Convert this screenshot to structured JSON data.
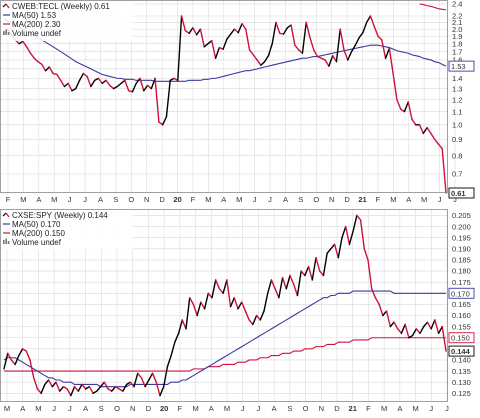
{
  "colors": {
    "price_up": "#000000",
    "price_down": "#d0103a",
    "ma50": "#3a3aa0",
    "ma200": "#d0103a",
    "grid": "#d8d8d8",
    "badge_bg": "#ffffff"
  },
  "chart_data": [
    {
      "type": "line",
      "legend": [
        {
          "text": "CWEB:TECL (Weekly) 0.61",
          "swatch": "price"
        },
        {
          "text": "MA(50) 1.53",
          "swatch": "ma50"
        },
        {
          "text": "MA(200) 2.30",
          "swatch": "ma200"
        },
        {
          "text": "Volume undef",
          "swatch": "volume"
        }
      ],
      "y_ticks": [
        "2.4",
        "2.2",
        "2.1",
        "2.0",
        "1.9",
        "1.8",
        "1.7",
        "1.6",
        "1.5",
        "1.4",
        "1.3",
        "1.2",
        "1.1",
        "1.0",
        "0.9",
        "0.8",
        "0.7"
      ],
      "y_tick_values": [
        2.4,
        2.2,
        2.1,
        2.0,
        1.9,
        1.8,
        1.7,
        1.6,
        1.5,
        1.4,
        1.3,
        1.2,
        1.1,
        1.0,
        0.9,
        0.8,
        0.7
      ],
      "ylim": [
        0.61,
        2.4
      ],
      "log_scale": true,
      "last_price_label": "0.61",
      "ma50_label": "1.53",
      "x_labels": [
        "F",
        "M",
        "A",
        "M",
        "J",
        "J",
        "A",
        "S",
        "O",
        "N",
        "D",
        "20",
        "F",
        "M",
        "A",
        "M",
        "J",
        "J",
        "A",
        "S",
        "O",
        "N",
        "D",
        "21",
        "F",
        "M",
        "A",
        "M",
        "J",
        "J"
      ],
      "price": [
        1.93,
        2.0,
        1.92,
        1.85,
        1.8,
        1.83,
        1.76,
        1.68,
        1.62,
        1.58,
        1.55,
        1.48,
        1.52,
        1.45,
        1.44,
        1.38,
        1.32,
        1.35,
        1.28,
        1.3,
        1.38,
        1.45,
        1.42,
        1.32,
        1.38,
        1.4,
        1.35,
        1.38,
        1.33,
        1.3,
        1.32,
        1.35,
        1.38,
        1.28,
        1.27,
        1.35,
        1.4,
        1.28,
        1.33,
        1.3,
        1.4,
        1.02,
        1.0,
        1.06,
        1.38,
        1.4,
        1.38,
        2.2,
        1.98,
        1.94,
        2.02,
        1.92,
        2.0,
        1.76,
        1.8,
        1.84,
        1.62,
        1.75,
        1.73,
        1.86,
        1.93,
        2.0,
        1.95,
        2.08,
        2.0,
        1.72,
        1.66,
        1.6,
        1.54,
        1.58,
        1.65,
        1.8,
        2.1,
        1.94,
        1.93,
        2.02,
        2.06,
        1.78,
        1.72,
        1.68,
        2.1,
        1.88,
        1.72,
        1.64,
        1.62,
        1.6,
        1.53,
        1.65,
        1.58,
        2.0,
        1.72,
        1.6,
        1.7,
        1.78,
        1.88,
        1.95,
        2.1,
        2.2,
        2.04,
        1.9,
        1.85,
        1.62,
        1.74,
        1.45,
        1.2,
        1.12,
        1.1,
        1.18,
        1.04,
        1.0,
        1.0,
        0.94,
        0.98,
        0.94,
        0.9,
        0.87,
        0.84,
        0.61
      ],
      "ma50": [
        2.15,
        2.12,
        2.09,
        2.06,
        2.03,
        2.0,
        1.97,
        1.94,
        1.91,
        1.88,
        1.85,
        1.82,
        1.79,
        1.76,
        1.73,
        1.7,
        1.67,
        1.64,
        1.61,
        1.58,
        1.56,
        1.54,
        1.52,
        1.5,
        1.48,
        1.46,
        1.44,
        1.43,
        1.42,
        1.41,
        1.4,
        1.4,
        1.39,
        1.39,
        1.39,
        1.38,
        1.38,
        1.38,
        1.38,
        1.38,
        1.37,
        1.37,
        1.37,
        1.37,
        1.37,
        1.37,
        1.37,
        1.37,
        1.37,
        1.38,
        1.38,
        1.38,
        1.38,
        1.39,
        1.39,
        1.4,
        1.4,
        1.41,
        1.42,
        1.43,
        1.44,
        1.45,
        1.46,
        1.47,
        1.48,
        1.48,
        1.49,
        1.5,
        1.51,
        1.52,
        1.53,
        1.54,
        1.55,
        1.56,
        1.57,
        1.58,
        1.59,
        1.6,
        1.61,
        1.62,
        1.62,
        1.63,
        1.64,
        1.64,
        1.65,
        1.66,
        1.67,
        1.68,
        1.69,
        1.7,
        1.71,
        1.72,
        1.73,
        1.74,
        1.75,
        1.76,
        1.77,
        1.78,
        1.78,
        1.78,
        1.77,
        1.76,
        1.75,
        1.73,
        1.71,
        1.7,
        1.69,
        1.68,
        1.66,
        1.65,
        1.64,
        1.62,
        1.61,
        1.6,
        1.58,
        1.57,
        1.55,
        1.53
      ],
      "ma200": [
        2.4,
        2.39,
        2.37,
        2.36,
        2.34,
        2.32,
        2.31,
        2.3
      ]
    },
    {
      "type": "line",
      "legend": [
        {
          "text": "CXSE:SPY (Weekly) 0.144",
          "swatch": "price"
        },
        {
          "text": "MA(50) 0.170",
          "swatch": "ma50"
        },
        {
          "text": "MA(200) 0.150",
          "swatch": "ma200"
        },
        {
          "text": "Volume undef",
          "swatch": "volume"
        }
      ],
      "y_ticks": [
        "0.205",
        "0.200",
        "0.195",
        "0.190",
        "0.185",
        "0.180",
        "0.175",
        "0.170",
        "0.165",
        "0.160",
        "0.155",
        "0.150",
        "0.145",
        "0.140",
        "0.135",
        "0.130",
        "0.125"
      ],
      "y_tick_values": [
        0.205,
        0.2,
        0.195,
        0.19,
        0.185,
        0.18,
        0.175,
        0.17,
        0.165,
        0.16,
        0.155,
        0.15,
        0.145,
        0.14,
        0.135,
        0.13,
        0.125
      ],
      "ylim": [
        0.122,
        0.207
      ],
      "last_price_label": "0.144",
      "ma50_label": "0.170",
      "ma200_label": "0.150",
      "x_labels": [
        "M",
        "A",
        "M",
        "J",
        "J",
        "A",
        "S",
        "O",
        "N",
        "D",
        "20",
        "F",
        "M",
        "A",
        "M",
        "J",
        "J",
        "A",
        "S",
        "O",
        "N",
        "D",
        "21",
        "F",
        "M",
        "A",
        "M",
        "J",
        "J"
      ],
      "price": [
        0.136,
        0.143,
        0.14,
        0.138,
        0.142,
        0.145,
        0.144,
        0.14,
        0.132,
        0.127,
        0.125,
        0.129,
        0.131,
        0.128,
        0.13,
        0.126,
        0.128,
        0.127,
        0.124,
        0.128,
        0.126,
        0.129,
        0.127,
        0.128,
        0.125,
        0.126,
        0.128,
        0.13,
        0.127,
        0.126,
        0.128,
        0.127,
        0.126,
        0.129,
        0.13,
        0.128,
        0.134,
        0.132,
        0.128,
        0.131,
        0.134,
        0.13,
        0.124,
        0.128,
        0.137,
        0.142,
        0.148,
        0.152,
        0.158,
        0.154,
        0.168,
        0.165,
        0.16,
        0.166,
        0.163,
        0.17,
        0.168,
        0.176,
        0.172,
        0.17,
        0.176,
        0.164,
        0.168,
        0.163,
        0.166,
        0.162,
        0.158,
        0.156,
        0.16,
        0.158,
        0.162,
        0.17,
        0.176,
        0.172,
        0.168,
        0.177,
        0.172,
        0.178,
        0.174,
        0.169,
        0.18,
        0.178,
        0.182,
        0.176,
        0.186,
        0.18,
        0.178,
        0.188,
        0.19,
        0.192,
        0.186,
        0.195,
        0.2,
        0.192,
        0.198,
        0.205,
        0.203,
        0.19,
        0.185,
        0.172,
        0.168,
        0.165,
        0.16,
        0.162,
        0.155,
        0.157,
        0.154,
        0.152,
        0.156,
        0.15,
        0.151,
        0.154,
        0.152,
        0.155,
        0.157,
        0.154,
        0.158,
        0.152,
        0.155,
        0.144
      ],
      "ma50": [
        0.14,
        0.141,
        0.141,
        0.141,
        0.14,
        0.139,
        0.138,
        0.137,
        0.136,
        0.135,
        0.134,
        0.133,
        0.132,
        0.132,
        0.131,
        0.131,
        0.13,
        0.13,
        0.13,
        0.129,
        0.129,
        0.129,
        0.129,
        0.129,
        0.129,
        0.129,
        0.128,
        0.128,
        0.128,
        0.128,
        0.128,
        0.128,
        0.128,
        0.128,
        0.129,
        0.129,
        0.129,
        0.129,
        0.129,
        0.129,
        0.129,
        0.129,
        0.129,
        0.129,
        0.129,
        0.13,
        0.13,
        0.13,
        0.131,
        0.131,
        0.132,
        0.133,
        0.134,
        0.135,
        0.136,
        0.137,
        0.138,
        0.139,
        0.14,
        0.141,
        0.142,
        0.143,
        0.144,
        0.145,
        0.146,
        0.147,
        0.148,
        0.149,
        0.15,
        0.151,
        0.152,
        0.153,
        0.154,
        0.155,
        0.156,
        0.157,
        0.158,
        0.159,
        0.16,
        0.161,
        0.162,
        0.163,
        0.164,
        0.165,
        0.166,
        0.167,
        0.168,
        0.168,
        0.169,
        0.169,
        0.17,
        0.17,
        0.17,
        0.17,
        0.171,
        0.171,
        0.171,
        0.171,
        0.171,
        0.171,
        0.171,
        0.171,
        0.171,
        0.171,
        0.171,
        0.17,
        0.17,
        0.17,
        0.17,
        0.17,
        0.17,
        0.17,
        0.17,
        0.17,
        0.17,
        0.17,
        0.17,
        0.17,
        0.17,
        0.17
      ],
      "ma200": [
        0.135,
        0.135,
        0.135,
        0.135,
        0.135,
        0.135,
        0.135,
        0.135,
        0.135,
        0.135,
        0.135,
        0.135,
        0.135,
        0.135,
        0.135,
        0.135,
        0.135,
        0.135,
        0.135,
        0.135,
        0.135,
        0.135,
        0.135,
        0.135,
        0.135,
        0.135,
        0.135,
        0.135,
        0.135,
        0.135,
        0.135,
        0.135,
        0.135,
        0.135,
        0.135,
        0.135,
        0.135,
        0.135,
        0.135,
        0.135,
        0.135,
        0.135,
        0.135,
        0.135,
        0.135,
        0.135,
        0.135,
        0.135,
        0.135,
        0.135,
        0.135,
        0.136,
        0.136,
        0.136,
        0.136,
        0.137,
        0.137,
        0.137,
        0.137,
        0.138,
        0.138,
        0.138,
        0.138,
        0.139,
        0.139,
        0.139,
        0.14,
        0.14,
        0.14,
        0.141,
        0.141,
        0.141,
        0.142,
        0.142,
        0.142,
        0.143,
        0.143,
        0.143,
        0.144,
        0.144,
        0.144,
        0.145,
        0.145,
        0.145,
        0.146,
        0.146,
        0.146,
        0.147,
        0.147,
        0.147,
        0.148,
        0.148,
        0.148,
        0.148,
        0.149,
        0.149,
        0.149,
        0.149,
        0.149,
        0.15,
        0.15,
        0.15,
        0.15,
        0.15,
        0.15,
        0.15,
        0.15,
        0.15,
        0.15,
        0.15,
        0.15,
        0.15,
        0.15,
        0.15,
        0.15,
        0.15,
        0.15,
        0.15,
        0.15,
        0.15
      ]
    }
  ]
}
